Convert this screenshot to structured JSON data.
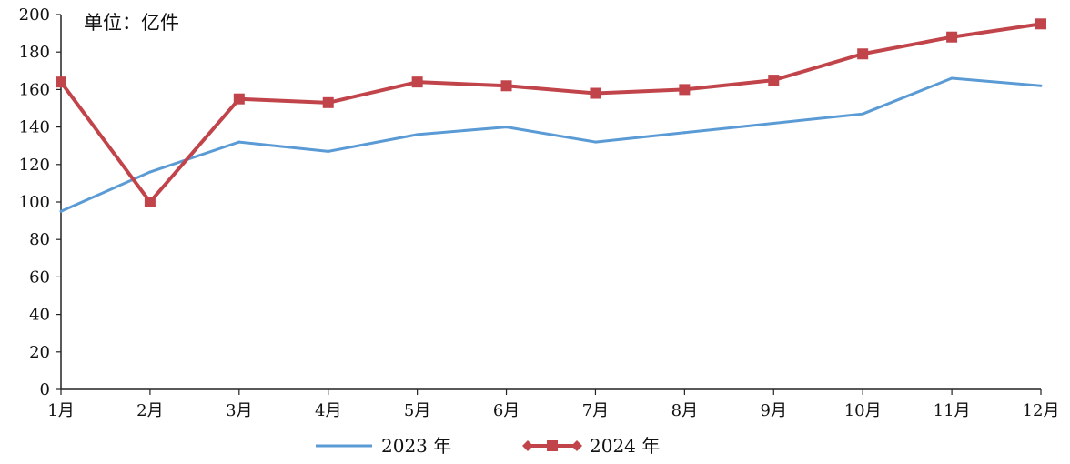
{
  "chart_data": {
    "type": "line",
    "unit_label": "单位：亿件",
    "categories": [
      "1月",
      "2月",
      "3月",
      "4月",
      "5月",
      "6月",
      "7月",
      "8月",
      "9月",
      "10月",
      "11月",
      "12月"
    ],
    "y_ticks": [
      "0",
      "20",
      "40",
      "60",
      "80",
      "100",
      "120",
      "140",
      "160",
      "180",
      "200"
    ],
    "ylim": [
      0,
      200
    ],
    "grid": false,
    "legend_position": "bottom",
    "series": [
      {
        "name": "2023 年",
        "color": "#5b9bd5",
        "marker": "none",
        "values": [
          95,
          116,
          132,
          127,
          136,
          140,
          132,
          137,
          142,
          147,
          166,
          162
        ]
      },
      {
        "name": "2024 年",
        "color": "#c0444a",
        "marker": "square",
        "values": [
          164,
          100,
          155,
          153,
          164,
          162,
          158,
          160,
          165,
          179,
          188,
          195
        ]
      }
    ]
  }
}
